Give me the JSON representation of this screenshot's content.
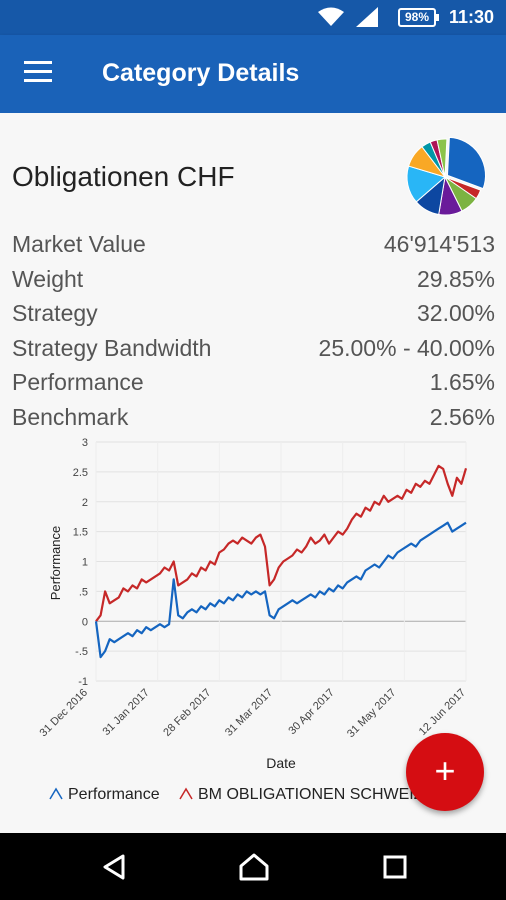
{
  "status_bar": {
    "battery": "98%",
    "time": "11:30",
    "icons": [
      "wifi-icon",
      "signal-icon",
      "battery-icon"
    ]
  },
  "app_bar": {
    "title": "Category Details",
    "menu_icon": "hamburger-menu-icon"
  },
  "category": {
    "name": "Obligationen CHF"
  },
  "details": [
    {
      "label": "Market Value",
      "value": "46'914'513"
    },
    {
      "label": "Weight",
      "value": "29.85%"
    },
    {
      "label": "Strategy",
      "value": "32.00%"
    },
    {
      "label": "Strategy Bandwidth",
      "value": "25.00% - 40.00%"
    },
    {
      "label": "Performance",
      "value": "1.65%"
    },
    {
      "label": "Benchmark",
      "value": "2.56%"
    }
  ],
  "pie_data": {
    "type": "pie",
    "slices": [
      {
        "value": 29.85,
        "color": "#1565c0"
      },
      {
        "value": 4,
        "color": "#c62828"
      },
      {
        "value": 8,
        "color": "#7cb342"
      },
      {
        "value": 10,
        "color": "#6a1b9a"
      },
      {
        "value": 11,
        "color": "#0d47a1"
      },
      {
        "value": 16,
        "color": "#29b6f6"
      },
      {
        "value": 10,
        "color": "#f9a825"
      },
      {
        "value": 4,
        "color": "#0097a7"
      },
      {
        "value": 3,
        "color": "#ad1457"
      },
      {
        "value": 4.15,
        "color": "#8bc34a"
      }
    ]
  },
  "chart_data": {
    "type": "line",
    "xlabel": "Date",
    "ylabel": "Performance",
    "ylim": [
      -1,
      3
    ],
    "y_ticks": [
      "-1",
      "-.5",
      "0",
      ".5",
      "1",
      "1.5",
      "2",
      "2.5",
      "3"
    ],
    "x_ticks": [
      "31 Dec 2016",
      "31 Jan 2017",
      "28 Feb 2017",
      "31 Mar 2017",
      "30 Apr 2017",
      "31 May 2017",
      "12 Jun 2017"
    ],
    "grid": true,
    "legend_position": "bottom",
    "series": [
      {
        "name": "Performance",
        "color": "#1565c0",
        "x": [
          0,
          2,
          4,
          6,
          8,
          10,
          12,
          14,
          16,
          18,
          20,
          22,
          24,
          26,
          28,
          30,
          32,
          34,
          36,
          38,
          40,
          42,
          44,
          46,
          48,
          50,
          52,
          54,
          56,
          58,
          60,
          62,
          64,
          66,
          68,
          70,
          72,
          74,
          76,
          78,
          80,
          82,
          84,
          86,
          88,
          90,
          92,
          94,
          96,
          98,
          100,
          102,
          104,
          106,
          108,
          110,
          112,
          114,
          116,
          118,
          120,
          122,
          124,
          126,
          128,
          130,
          132,
          134,
          136,
          138,
          140,
          142,
          144,
          146,
          148,
          150,
          152,
          154,
          156,
          158,
          160,
          162
        ],
        "y": [
          0,
          -0.6,
          -0.5,
          -0.3,
          -0.35,
          -0.3,
          -0.25,
          -0.2,
          -0.25,
          -0.15,
          -0.2,
          -0.1,
          -0.15,
          -0.1,
          -0.05,
          -0.1,
          -0.05,
          0.7,
          0.1,
          0.05,
          0.15,
          0.2,
          0.15,
          0.25,
          0.2,
          0.3,
          0.25,
          0.35,
          0.3,
          0.4,
          0.35,
          0.45,
          0.4,
          0.5,
          0.45,
          0.5,
          0.45,
          0.5,
          0.1,
          0.05,
          0.2,
          0.25,
          0.3,
          0.35,
          0.3,
          0.35,
          0.4,
          0.45,
          0.4,
          0.5,
          0.45,
          0.55,
          0.5,
          0.6,
          0.55,
          0.65,
          0.7,
          0.75,
          0.7,
          0.85,
          0.9,
          0.95,
          0.9,
          1.0,
          1.1,
          1.05,
          1.15,
          1.2,
          1.25,
          1.3,
          1.25,
          1.35,
          1.4,
          1.45,
          1.5,
          1.55,
          1.6,
          1.65,
          1.5,
          1.55,
          1.6,
          1.65
        ]
      },
      {
        "name": "BM OBLIGATIONEN SCHWEIZ",
        "color": "#c62828",
        "x": [
          0,
          2,
          4,
          6,
          8,
          10,
          12,
          14,
          16,
          18,
          20,
          22,
          24,
          26,
          28,
          30,
          32,
          34,
          36,
          38,
          40,
          42,
          44,
          46,
          48,
          50,
          52,
          54,
          56,
          58,
          60,
          62,
          64,
          66,
          68,
          70,
          72,
          74,
          76,
          78,
          80,
          82,
          84,
          86,
          88,
          90,
          92,
          94,
          96,
          98,
          100,
          102,
          104,
          106,
          108,
          110,
          112,
          114,
          116,
          118,
          120,
          122,
          124,
          126,
          128,
          130,
          132,
          134,
          136,
          138,
          140,
          142,
          144,
          146,
          148,
          150,
          152,
          154,
          156,
          158,
          160,
          162
        ],
        "y": [
          0,
          0.1,
          0.5,
          0.3,
          0.35,
          0.4,
          0.55,
          0.5,
          0.6,
          0.55,
          0.7,
          0.65,
          0.7,
          0.75,
          0.8,
          0.9,
          0.85,
          1.0,
          0.6,
          0.65,
          0.7,
          0.8,
          0.75,
          0.9,
          0.85,
          1.0,
          0.95,
          1.15,
          1.2,
          1.3,
          1.35,
          1.3,
          1.4,
          1.35,
          1.3,
          1.4,
          1.45,
          1.25,
          0.6,
          0.7,
          0.9,
          1.0,
          1.05,
          1.1,
          1.2,
          1.15,
          1.25,
          1.4,
          1.3,
          1.35,
          1.45,
          1.3,
          1.4,
          1.5,
          1.45,
          1.55,
          1.7,
          1.8,
          1.75,
          1.9,
          1.85,
          2.0,
          1.95,
          2.1,
          2.0,
          2.05,
          2.1,
          2.05,
          2.2,
          2.15,
          2.3,
          2.25,
          2.35,
          2.3,
          2.45,
          2.6,
          2.55,
          2.3,
          2.1,
          2.4,
          2.3,
          2.56
        ]
      }
    ]
  },
  "legend": {
    "performance": "Performance",
    "benchmark": "BM OBLIGATIONEN SCHWEIZ"
  },
  "fab": {
    "label": "+"
  },
  "nav": {
    "icons": [
      "back-icon",
      "home-icon",
      "recents-icon"
    ]
  }
}
